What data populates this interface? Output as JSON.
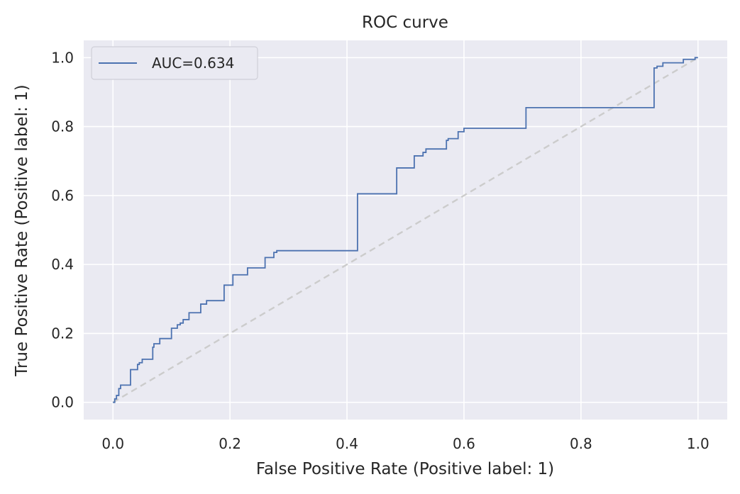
{
  "chart_data": {
    "type": "line",
    "title": "ROC curve",
    "xlabel": "False Positive Rate (Positive label: 1)",
    "ylabel": "True Positive Rate (Positive label: 1)",
    "xlim": [
      -0.05,
      1.05
    ],
    "ylim": [
      -0.05,
      1.05
    ],
    "xticks": [
      0.0,
      0.2,
      0.4,
      0.6,
      0.8,
      1.0
    ],
    "yticks": [
      0.0,
      0.2,
      0.4,
      0.6,
      0.8,
      1.0
    ],
    "xtick_labels": [
      "0.0",
      "0.2",
      "0.4",
      "0.6",
      "0.8",
      "1.0"
    ],
    "ytick_labels": [
      "0.0",
      "0.2",
      "0.4",
      "0.6",
      "0.8",
      "1.0"
    ],
    "grid": true,
    "legend_position": "top-left",
    "background_color": "#eaeaf2",
    "grid_color": "#ffffff",
    "series": [
      {
        "name": "AUC=0.634",
        "style": "step",
        "color": "#4c72b0",
        "x": [
          0.0,
          0.003,
          0.003,
          0.006,
          0.006,
          0.01,
          0.01,
          0.013,
          0.013,
          0.03,
          0.03,
          0.042,
          0.042,
          0.045,
          0.045,
          0.05,
          0.05,
          0.068,
          0.068,
          0.07,
          0.07,
          0.08,
          0.08,
          0.1,
          0.1,
          0.11,
          0.11,
          0.115,
          0.115,
          0.12,
          0.12,
          0.13,
          0.13,
          0.15,
          0.15,
          0.16,
          0.16,
          0.19,
          0.19,
          0.205,
          0.205,
          0.23,
          0.23,
          0.26,
          0.26,
          0.275,
          0.275,
          0.28,
          0.28,
          0.418,
          0.418,
          0.485,
          0.485,
          0.515,
          0.515,
          0.53,
          0.53,
          0.535,
          0.535,
          0.57,
          0.57,
          0.573,
          0.573,
          0.59,
          0.59,
          0.6,
          0.6,
          0.706,
          0.706,
          0.925,
          0.925,
          0.93,
          0.93,
          0.94,
          0.94,
          0.975,
          0.975,
          0.995,
          0.995,
          1.0
        ],
        "y": [
          0.0,
          0.0,
          0.01,
          0.01,
          0.02,
          0.02,
          0.04,
          0.04,
          0.05,
          0.05,
          0.095,
          0.095,
          0.11,
          0.11,
          0.115,
          0.115,
          0.125,
          0.125,
          0.16,
          0.16,
          0.17,
          0.17,
          0.185,
          0.185,
          0.215,
          0.215,
          0.225,
          0.225,
          0.23,
          0.23,
          0.24,
          0.24,
          0.26,
          0.26,
          0.285,
          0.285,
          0.295,
          0.295,
          0.34,
          0.34,
          0.37,
          0.37,
          0.39,
          0.39,
          0.42,
          0.42,
          0.435,
          0.435,
          0.44,
          0.44,
          0.605,
          0.605,
          0.68,
          0.68,
          0.715,
          0.715,
          0.725,
          0.725,
          0.735,
          0.735,
          0.76,
          0.76,
          0.765,
          0.765,
          0.785,
          0.785,
          0.795,
          0.795,
          0.855,
          0.855,
          0.97,
          0.97,
          0.975,
          0.975,
          0.985,
          0.985,
          0.995,
          0.995,
          1.0,
          1.0
        ]
      },
      {
        "name": "",
        "style": "dashed",
        "color": "#cccccc",
        "x": [
          0.0,
          1.0
        ],
        "y": [
          0.0,
          1.0
        ]
      }
    ]
  }
}
